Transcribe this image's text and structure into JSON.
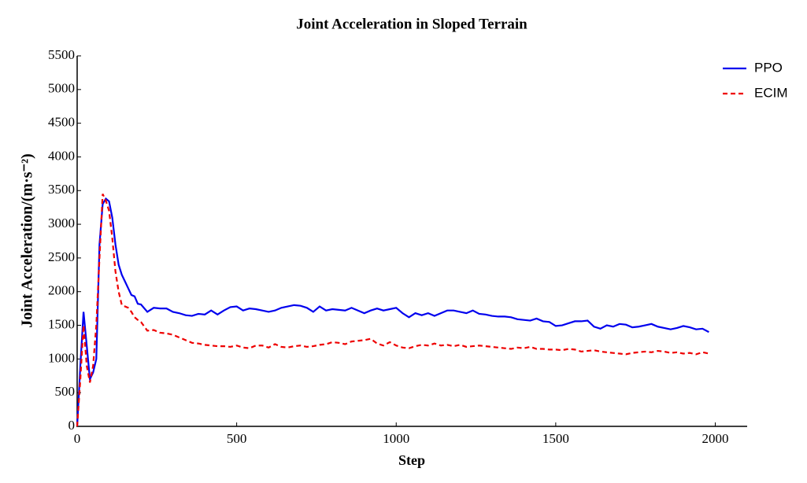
{
  "chart_data": {
    "type": "line",
    "title": "Joint Acceleration in Sloped Terrain",
    "x_label": "Step",
    "y_label": "Joint Acceleration/(m·s⁻²)",
    "x": [
      0,
      10,
      20,
      30,
      40,
      50,
      60,
      70,
      80,
      90,
      100,
      110,
      120,
      130,
      140,
      150,
      160,
      170,
      180,
      190,
      200,
      220,
      240,
      260,
      280,
      300,
      320,
      340,
      360,
      380,
      400,
      420,
      440,
      460,
      480,
      500,
      520,
      540,
      560,
      580,
      600,
      620,
      640,
      660,
      680,
      700,
      720,
      740,
      760,
      780,
      800,
      820,
      840,
      860,
      880,
      900,
      920,
      940,
      960,
      980,
      1000,
      1020,
      1040,
      1060,
      1080,
      1100,
      1120,
      1140,
      1160,
      1180,
      1200,
      1220,
      1240,
      1260,
      1280,
      1300,
      1320,
      1340,
      1360,
      1380,
      1400,
      1420,
      1440,
      1460,
      1480,
      1500,
      1520,
      1540,
      1560,
      1580,
      1600,
      1620,
      1640,
      1660,
      1680,
      1700,
      1720,
      1740,
      1760,
      1780,
      1800,
      1820,
      1840,
      1860,
      1880,
      1900,
      1920,
      1940,
      1960,
      1980
    ],
    "series": [
      {
        "name": "PPO",
        "color": "#0000ee",
        "dash": false,
        "values": [
          0,
          900,
          1700,
          1200,
          700,
          800,
          1000,
          2700,
          3300,
          3380,
          3340,
          3100,
          2700,
          2400,
          2250,
          2150,
          2050,
          1950,
          1930,
          1820,
          1810,
          1700,
          1760,
          1750,
          1750,
          1700,
          1680,
          1650,
          1640,
          1670,
          1660,
          1720,
          1660,
          1720,
          1770,
          1780,
          1720,
          1750,
          1740,
          1720,
          1700,
          1720,
          1760,
          1780,
          1800,
          1790,
          1760,
          1700,
          1780,
          1720,
          1740,
          1730,
          1720,
          1760,
          1720,
          1680,
          1720,
          1750,
          1720,
          1740,
          1760,
          1680,
          1620,
          1680,
          1650,
          1680,
          1640,
          1680,
          1720,
          1720,
          1700,
          1680,
          1720,
          1670,
          1660,
          1640,
          1630,
          1630,
          1620,
          1590,
          1580,
          1570,
          1600,
          1560,
          1550,
          1490,
          1500,
          1530,
          1560,
          1560,
          1570,
          1480,
          1450,
          1500,
          1480,
          1520,
          1510,
          1470,
          1480,
          1500,
          1520,
          1480,
          1460,
          1440,
          1460,
          1490,
          1470,
          1440,
          1450,
          1400
        ]
      },
      {
        "name": "ECIM",
        "color": "#ee0000",
        "dash": true,
        "values": [
          0,
          700,
          1500,
          900,
          650,
          900,
          1500,
          2500,
          3450,
          3350,
          3200,
          2800,
          2300,
          2000,
          1800,
          1780,
          1760,
          1700,
          1620,
          1580,
          1550,
          1420,
          1430,
          1390,
          1380,
          1360,
          1320,
          1280,
          1240,
          1230,
          1210,
          1200,
          1190,
          1190,
          1180,
          1200,
          1170,
          1160,
          1200,
          1200,
          1170,
          1220,
          1180,
          1170,
          1190,
          1200,
          1180,
          1190,
          1210,
          1220,
          1250,
          1240,
          1220,
          1260,
          1270,
          1280,
          1300,
          1230,
          1200,
          1250,
          1200,
          1170,
          1160,
          1190,
          1210,
          1200,
          1230,
          1200,
          1210,
          1190,
          1210,
          1180,
          1190,
          1200,
          1190,
          1180,
          1170,
          1160,
          1150,
          1170,
          1160,
          1180,
          1150,
          1150,
          1140,
          1140,
          1130,
          1150,
          1140,
          1110,
          1120,
          1130,
          1110,
          1100,
          1090,
          1080,
          1070,
          1090,
          1100,
          1110,
          1100,
          1120,
          1110,
          1090,
          1100,
          1080,
          1090,
          1070,
          1100,
          1080
        ]
      }
    ],
    "xlim": [
      0,
      2100
    ],
    "xticks": [
      0,
      500,
      1000,
      1500,
      2000
    ],
    "ylim": [
      0,
      5500
    ],
    "yticks": [
      0,
      500,
      1000,
      1500,
      2000,
      2500,
      3000,
      3500,
      4000,
      4500,
      5000,
      5500
    ],
    "grid": false,
    "legend": "upper right"
  }
}
